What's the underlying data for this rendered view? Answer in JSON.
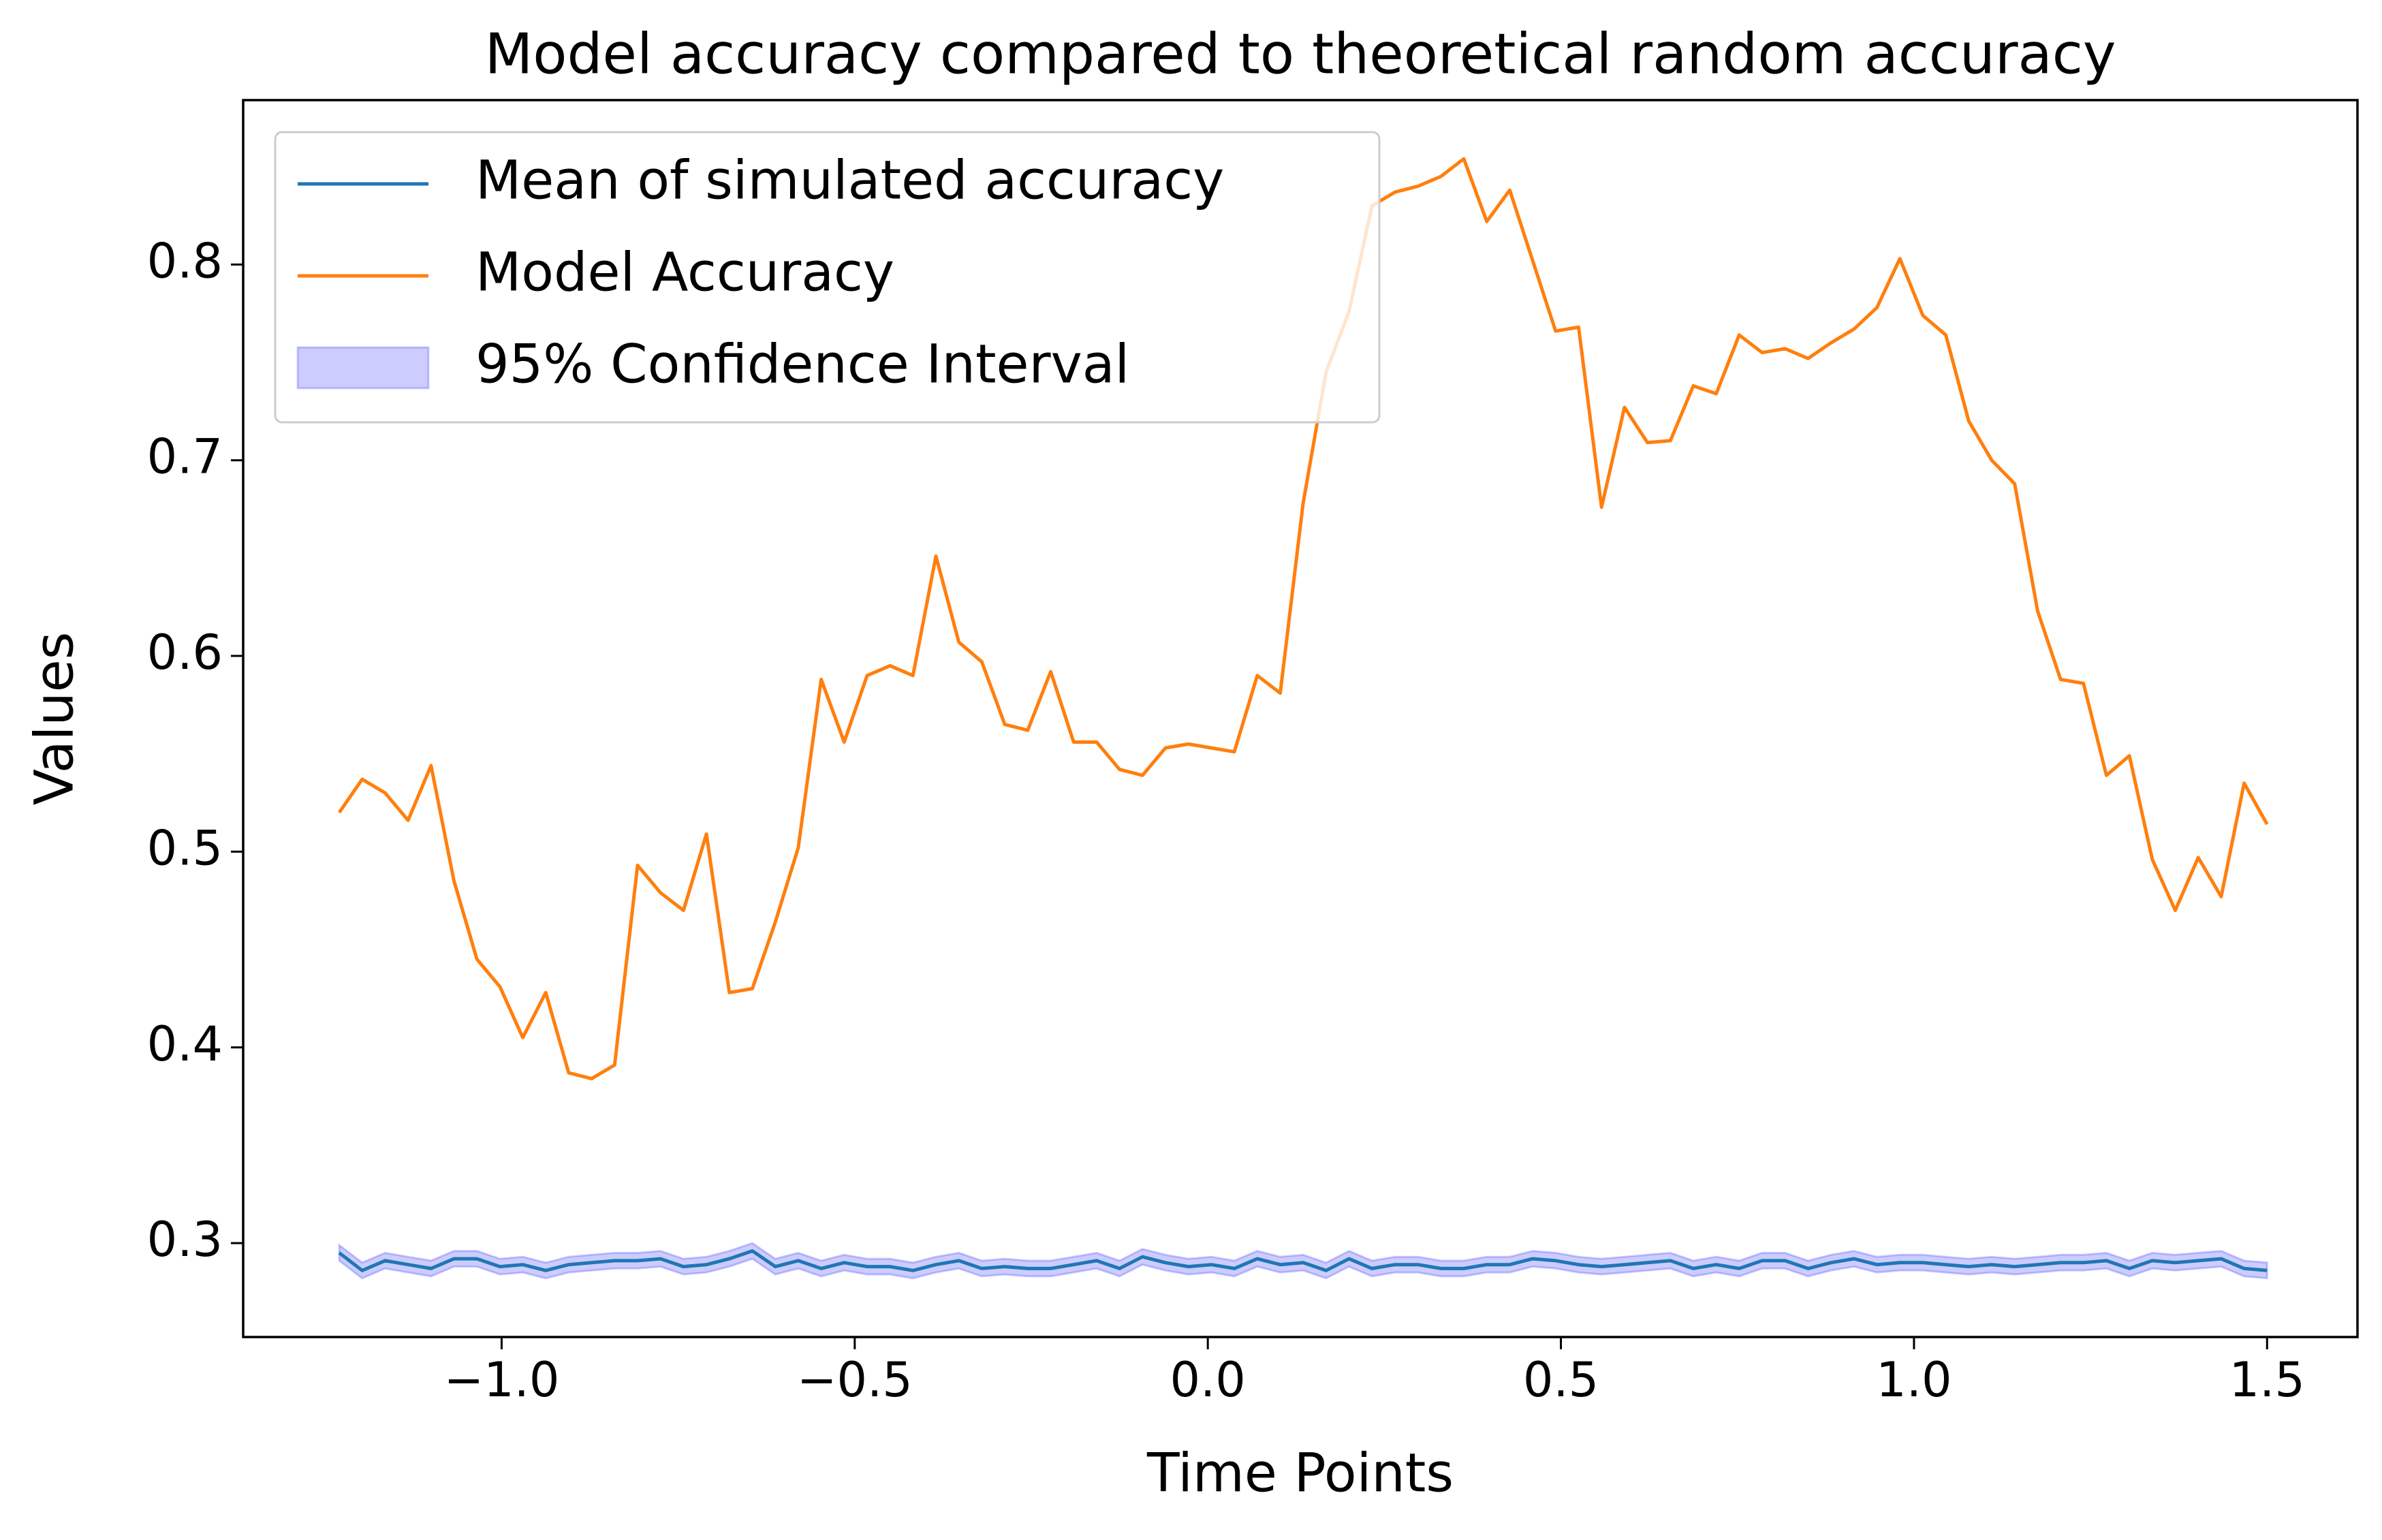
{
  "chart_data": {
    "type": "line",
    "title": "Model accuracy compared to theoretical random accuracy",
    "xlabel": "Time Points",
    "ylabel": "Values",
    "x": [
      -1.23,
      -1.1975,
      -1.165,
      -1.1325,
      -1.1,
      -1.0675,
      -1.035,
      -1.0025,
      -0.97,
      -0.9375,
      -0.905,
      -0.8725,
      -0.84,
      -0.8075,
      -0.775,
      -0.7425,
      -0.71,
      -0.6775,
      -0.645,
      -0.6125,
      -0.58,
      -0.5475,
      -0.515,
      -0.4825,
      -0.45,
      -0.4175,
      -0.385,
      -0.3525,
      -0.32,
      -0.2875,
      -0.255,
      -0.2225,
      -0.19,
      -0.1575,
      -0.125,
      -0.0925,
      -0.06,
      -0.0275,
      0.005,
      0.0375,
      0.07,
      0.1025,
      0.135,
      0.1675,
      0.2,
      0.2325,
      0.265,
      0.2975,
      0.33,
      0.3625,
      0.395,
      0.4275,
      0.46,
      0.4925,
      0.525,
      0.5575,
      0.59,
      0.6225,
      0.655,
      0.6875,
      0.72,
      0.7525,
      0.785,
      0.8175,
      0.85,
      0.8825,
      0.915,
      0.9475,
      0.98,
      1.0125,
      1.045,
      1.0775,
      1.11,
      1.1425,
      1.175,
      1.2075,
      1.24,
      1.2725,
      1.305,
      1.3375,
      1.37,
      1.4025,
      1.435,
      1.4675,
      1.5
    ],
    "series": [
      {
        "name": "Mean of simulated accuracy",
        "color": "#1f77b4",
        "values": [
          0.295,
          0.286,
          0.291,
          0.289,
          0.287,
          0.292,
          0.292,
          0.288,
          0.289,
          0.286,
          0.289,
          0.29,
          0.291,
          0.291,
          0.292,
          0.288,
          0.289,
          0.292,
          0.296,
          0.288,
          0.291,
          0.287,
          0.29,
          0.288,
          0.288,
          0.286,
          0.289,
          0.291,
          0.287,
          0.288,
          0.287,
          0.287,
          0.289,
          0.291,
          0.287,
          0.293,
          0.29,
          0.288,
          0.289,
          0.287,
          0.292,
          0.289,
          0.29,
          0.286,
          0.292,
          0.287,
          0.289,
          0.289,
          0.287,
          0.287,
          0.289,
          0.289,
          0.292,
          0.291,
          0.289,
          0.288,
          0.289,
          0.29,
          0.291,
          0.287,
          0.289,
          0.287,
          0.291,
          0.291,
          0.287,
          0.29,
          0.292,
          0.289,
          0.29,
          0.29,
          0.289,
          0.288,
          0.289,
          0.288,
          0.289,
          0.29,
          0.29,
          0.291,
          0.287,
          0.291,
          0.29,
          0.291,
          0.292,
          0.287,
          0.286
        ]
      },
      {
        "name": "Model Accuracy",
        "color": "#ff7f0e",
        "values": [
          0.52,
          0.537,
          0.53,
          0.516,
          0.544,
          0.485,
          0.445,
          0.431,
          0.405,
          0.428,
          0.387,
          0.384,
          0.391,
          0.493,
          0.479,
          0.47,
          0.509,
          0.428,
          0.43,
          0.464,
          0.502,
          0.588,
          0.556,
          0.59,
          0.595,
          0.59,
          0.651,
          0.607,
          0.597,
          0.565,
          0.562,
          0.592,
          0.556,
          0.556,
          0.542,
          0.539,
          0.553,
          0.555,
          0.553,
          0.551,
          0.59,
          0.581,
          0.678,
          0.745,
          0.776,
          0.83,
          0.837,
          0.84,
          0.845,
          0.854,
          0.822,
          0.838,
          0.802,
          0.766,
          0.768,
          0.676,
          0.727,
          0.709,
          0.71,
          0.738,
          0.734,
          0.764,
          0.755,
          0.757,
          0.752,
          0.76,
          0.767,
          0.778,
          0.803,
          0.774,
          0.764,
          0.72,
          0.7,
          0.688,
          0.623,
          0.588,
          0.586,
          0.539,
          0.549,
          0.496,
          0.47,
          0.497,
          0.477,
          0.535,
          0.514
        ]
      }
    ],
    "band": {
      "name": "95% Confidence Interval",
      "color": "#0000ff",
      "alpha": 0.2,
      "lower": [
        0.291,
        0.282,
        0.287,
        0.285,
        0.283,
        0.288,
        0.288,
        0.284,
        0.285,
        0.282,
        0.285,
        0.286,
        0.287,
        0.287,
        0.288,
        0.284,
        0.285,
        0.288,
        0.292,
        0.284,
        0.287,
        0.283,
        0.286,
        0.284,
        0.284,
        0.282,
        0.285,
        0.287,
        0.283,
        0.284,
        0.283,
        0.283,
        0.285,
        0.287,
        0.283,
        0.289,
        0.286,
        0.284,
        0.285,
        0.283,
        0.288,
        0.285,
        0.286,
        0.282,
        0.288,
        0.283,
        0.285,
        0.285,
        0.283,
        0.283,
        0.285,
        0.285,
        0.288,
        0.287,
        0.285,
        0.284,
        0.285,
        0.286,
        0.287,
        0.283,
        0.285,
        0.283,
        0.287,
        0.287,
        0.283,
        0.286,
        0.288,
        0.285,
        0.286,
        0.286,
        0.285,
        0.284,
        0.285,
        0.284,
        0.285,
        0.286,
        0.286,
        0.287,
        0.283,
        0.287,
        0.286,
        0.287,
        0.288,
        0.283,
        0.282
      ],
      "upper": [
        0.299,
        0.29,
        0.295,
        0.293,
        0.291,
        0.296,
        0.296,
        0.292,
        0.293,
        0.29,
        0.293,
        0.294,
        0.295,
        0.295,
        0.296,
        0.292,
        0.293,
        0.296,
        0.3,
        0.292,
        0.295,
        0.291,
        0.294,
        0.292,
        0.292,
        0.29,
        0.293,
        0.295,
        0.291,
        0.292,
        0.291,
        0.291,
        0.293,
        0.295,
        0.291,
        0.297,
        0.294,
        0.292,
        0.293,
        0.291,
        0.296,
        0.293,
        0.294,
        0.29,
        0.296,
        0.291,
        0.293,
        0.293,
        0.291,
        0.291,
        0.293,
        0.293,
        0.296,
        0.295,
        0.293,
        0.292,
        0.293,
        0.294,
        0.295,
        0.291,
        0.293,
        0.291,
        0.295,
        0.295,
        0.291,
        0.294,
        0.296,
        0.293,
        0.294,
        0.294,
        0.293,
        0.292,
        0.293,
        0.292,
        0.293,
        0.294,
        0.294,
        0.295,
        0.291,
        0.295,
        0.294,
        0.295,
        0.296,
        0.291,
        0.29
      ]
    },
    "xlim": [
      -1.366,
      1.628
    ],
    "ylim": [
      0.252,
      0.884
    ],
    "xticks": [
      {
        "value": -1,
        "label": "−1.0"
      },
      {
        "value": -0.5,
        "label": "−0.5"
      },
      {
        "value": 0,
        "label": "0.0"
      },
      0.5,
      {
        "value": 1,
        "label": "1.0"
      },
      1.5
    ],
    "yticks": [
      0.3,
      0.4,
      0.5,
      0.6,
      0.7,
      0.8
    ],
    "grid": false,
    "legend": "upper left"
  }
}
